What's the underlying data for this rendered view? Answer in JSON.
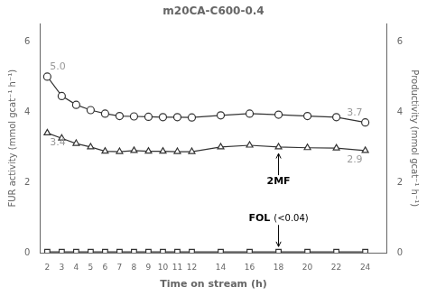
{
  "chart_data": {
    "type": "line",
    "title": "m20CA-C600-0.4",
    "xlabel": "Time on stream (h)",
    "ylabel": "FUR activity (mmol gcat⁻¹ h⁻¹)",
    "y2label": "Productivity (mmol gcat⁻¹ h⁻¹)",
    "x": [
      2,
      3,
      4,
      5,
      6,
      7,
      8,
      9,
      10,
      11,
      12,
      14,
      16,
      18,
      20,
      22,
      24
    ],
    "series": [
      {
        "color": "#333333",
        "marker": "circle",
        "values": [
          5.0,
          4.45,
          4.2,
          4.05,
          3.95,
          3.88,
          3.87,
          3.86,
          3.85,
          3.85,
          3.84,
          3.9,
          3.95,
          3.92,
          3.88,
          3.85,
          3.7
        ]
      },
      {
        "color": "#333333",
        "marker": "triangle",
        "axis": "y2",
        "values": [
          3.4,
          3.25,
          3.1,
          3.0,
          2.88,
          2.87,
          2.9,
          2.88,
          2.88,
          2.87,
          2.87,
          3.0,
          3.05,
          3.0,
          2.98,
          2.97,
          2.9
        ]
      },
      {
        "color": "#333333",
        "marker": "square",
        "axis": "y2",
        "values": [
          0.02,
          0.02,
          0.02,
          0.02,
          0.02,
          0.02,
          0.02,
          0.02,
          0.02,
          0.02,
          0.02,
          0.02,
          0.02,
          0.02,
          0.02,
          0.02,
          0.02
        ]
      }
    ],
    "xlim": [
      1.5,
      25.5
    ],
    "xticks": [
      2,
      3,
      4,
      5,
      6,
      7,
      8,
      9,
      10,
      11,
      12,
      14,
      16,
      18,
      20,
      22,
      24
    ],
    "ylim": [
      0,
      6.5
    ],
    "yticks": [
      0,
      2,
      4,
      6
    ],
    "y2lim": [
      0,
      6.5
    ],
    "y2ticks": [
      0,
      2,
      4,
      6
    ],
    "grid": false,
    "annotations": [
      {
        "text": "5.0",
        "x": 2,
        "y": 5.0,
        "position": "above",
        "color": "#999999"
      },
      {
        "text": "3.7",
        "x": 24,
        "y": 3.7,
        "position": "above",
        "color": "#999999"
      },
      {
        "text": "3.4",
        "x": 2,
        "y": 3.4,
        "position": "below",
        "color": "#999999"
      },
      {
        "text": "2.9",
        "x": 24,
        "y": 2.9,
        "position": "below",
        "color": "#999999"
      },
      {
        "text": "2MF",
        "x": 18,
        "y": 2.97,
        "position": "below",
        "arrow": true
      },
      {
        "text": "FOL",
        "suffix": "(<0.04)",
        "x": 18,
        "y": 0.02,
        "position": "above",
        "arrow": true
      }
    ]
  }
}
